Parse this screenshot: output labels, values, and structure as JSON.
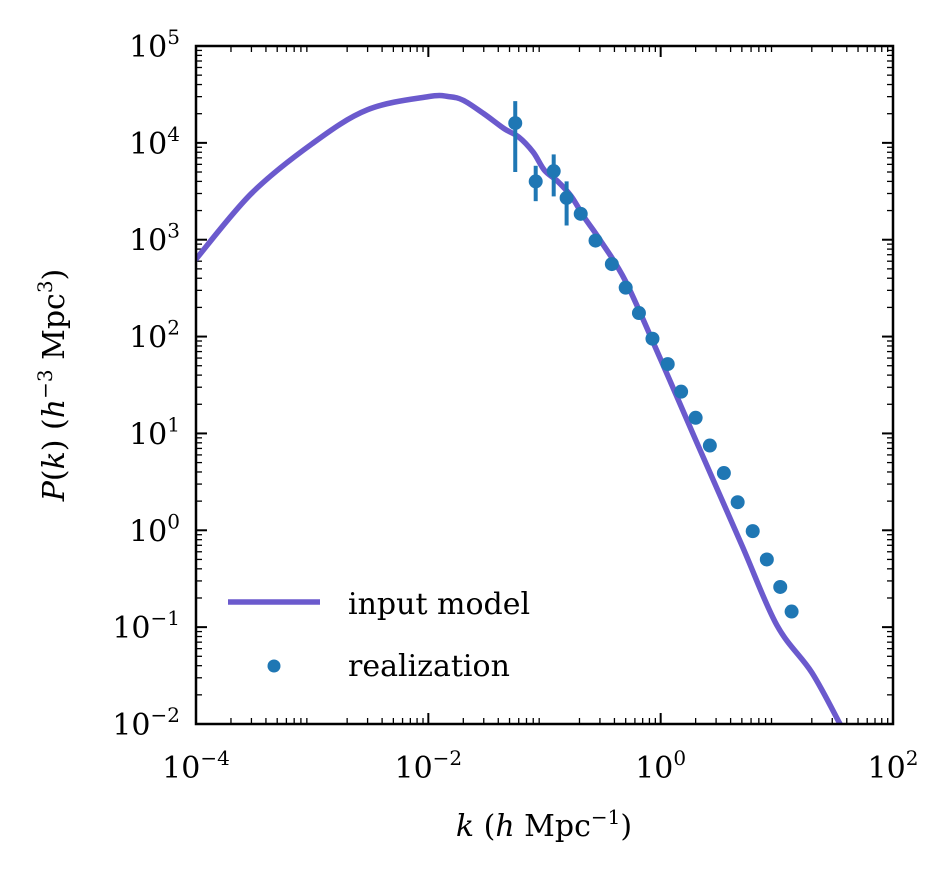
{
  "chart_data": {
    "type": "line",
    "title": "",
    "xscale": "log",
    "yscale": "log",
    "xlim": [
      0.0001,
      100
    ],
    "ylim": [
      0.01,
      100000
    ],
    "xlabel": {
      "var": "k",
      "open": " (",
      "unit_var": "h",
      "unit": " Mpc",
      "exp": "−1",
      "close": ")"
    },
    "ylabel": {
      "var": "P",
      "open": "(",
      "arg": "k",
      "mid": ") (",
      "unit_var": "h",
      "exp1": "−3",
      "unit": " Mpc",
      "exp2": "3",
      "close": ")"
    },
    "xticks": [
      {
        "value": 0.0001,
        "base": "10",
        "exp": "−4"
      },
      {
        "value": 0.01,
        "base": "10",
        "exp": "−2"
      },
      {
        "value": 1,
        "base": "10",
        "exp": "0"
      },
      {
        "value": 100,
        "base": "10",
        "exp": "2"
      }
    ],
    "yticks": [
      {
        "value": 0.01,
        "base": "10",
        "exp": "−2"
      },
      {
        "value": 0.1,
        "base": "10",
        "exp": "−1"
      },
      {
        "value": 1,
        "base": "10",
        "exp": "0"
      },
      {
        "value": 10,
        "base": "10",
        "exp": "1"
      },
      {
        "value": 100,
        "base": "10",
        "exp": "2"
      },
      {
        "value": 1000,
        "base": "10",
        "exp": "3"
      },
      {
        "value": 10000,
        "base": "10",
        "exp": "4"
      },
      {
        "value": 100000,
        "base": "10",
        "exp": "5"
      }
    ],
    "grid": false,
    "legend_position": "lower-left",
    "series": [
      {
        "name": "input model",
        "kind": "line",
        "color": "#6b5acd",
        "x": [
          0.0001,
          0.0003,
          0.001,
          0.003,
          0.01,
          0.015,
          0.02,
          0.03,
          0.045,
          0.06,
          0.08,
          0.1,
          0.13,
          0.17,
          0.22,
          0.3,
          0.5,
          1,
          2,
          5,
          10,
          20,
          35
        ],
        "y": [
          630,
          3000,
          9800,
          22000,
          30000,
          30000,
          27500,
          20000,
          14000,
          11500,
          8000,
          5200,
          4000,
          2800,
          1700,
          1000,
          370,
          58,
          8.6,
          0.7,
          0.105,
          0.034,
          0.01
        ]
      },
      {
        "name": "realization",
        "kind": "scatter",
        "color": "#1f77b4",
        "x": [
          0.056,
          0.084,
          0.12,
          0.155,
          0.205,
          0.275,
          0.38,
          0.5,
          0.65,
          0.85,
          1.15,
          1.5,
          2.0,
          2.65,
          3.5,
          4.6,
          6.2,
          8.2,
          10.7,
          13.4
        ],
        "y": [
          16000,
          4000,
          5100,
          2700,
          1850,
          980,
          560,
          320,
          175,
          95,
          52,
          27,
          14.5,
          7.5,
          3.9,
          1.95,
          0.98,
          0.5,
          0.26,
          0.145
        ],
        "err_low": [
          5000,
          2500,
          2800,
          1400,
          1850,
          980,
          560,
          320,
          175,
          95,
          52,
          27,
          14.5,
          7.5,
          3.9,
          1.95,
          0.98,
          0.5,
          0.26,
          0.145
        ],
        "err_high": [
          27000,
          5800,
          7600,
          4000,
          1850,
          980,
          560,
          320,
          175,
          95,
          52,
          27,
          14.5,
          7.5,
          3.9,
          1.95,
          0.98,
          0.5,
          0.26,
          0.145
        ]
      }
    ]
  }
}
